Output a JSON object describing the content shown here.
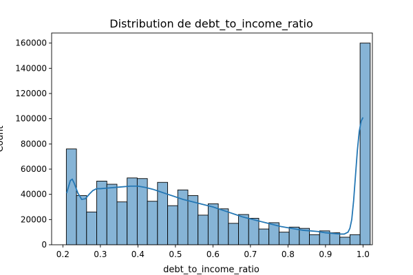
{
  "chart_data": {
    "type": "bar",
    "title": "Distribution de debt_to_income_ratio",
    "xlabel": "debt_to_income_ratio",
    "ylabel": "Count",
    "xlim": [
      0.17,
      1.025
    ],
    "ylim": [
      0,
      168000
    ],
    "x_ticks": [
      0.2,
      0.3,
      0.4,
      0.5,
      0.6,
      0.7,
      0.8,
      0.9,
      1.0
    ],
    "x_tick_labels": [
      "0.2",
      "0.3",
      "0.4",
      "0.5",
      "0.6",
      "0.7",
      "0.8",
      "0.9",
      "1.0"
    ],
    "y_ticks": [
      0,
      20000,
      40000,
      60000,
      80000,
      100000,
      120000,
      140000,
      160000
    ],
    "y_tick_labels": [
      "0",
      "20000",
      "40000",
      "60000",
      "80000",
      "100000",
      "120000",
      "140000",
      "160000"
    ],
    "bin_edges": [
      0.2092,
      0.2362,
      0.2632,
      0.2902,
      0.3172,
      0.3442,
      0.3712,
      0.3982,
      0.4252,
      0.4522,
      0.4792,
      0.5062,
      0.5332,
      0.5602,
      0.5872,
      0.6142,
      0.6412,
      0.6682,
      0.6952,
      0.7222,
      0.7492,
      0.7762,
      0.8032,
      0.8302,
      0.8572,
      0.8842,
      0.9112,
      0.9382,
      0.9652,
      0.9922,
      1.0192
    ],
    "values": [
      76000,
      39000,
      26000,
      50500,
      48000,
      34000,
      53000,
      52500,
      34500,
      49500,
      31000,
      43500,
      39000,
      23500,
      32500,
      28500,
      17000,
      24000,
      21000,
      12500,
      17500,
      10000,
      14000,
      13000,
      8000,
      11000,
      9500,
      6000,
      8000,
      160000
    ],
    "kde": {
      "x": [
        0.21,
        0.215,
        0.22,
        0.225,
        0.23,
        0.24,
        0.25,
        0.26,
        0.27,
        0.28,
        0.29,
        0.3,
        0.32,
        0.34,
        0.36,
        0.38,
        0.4,
        0.42,
        0.44,
        0.46,
        0.48,
        0.5,
        0.52,
        0.54,
        0.56,
        0.58,
        0.6,
        0.62,
        0.64,
        0.66,
        0.68,
        0.7,
        0.72,
        0.74,
        0.76,
        0.78,
        0.8,
        0.82,
        0.84,
        0.86,
        0.88,
        0.9,
        0.92,
        0.94,
        0.95,
        0.96,
        0.965,
        0.97,
        0.975,
        0.98,
        0.985,
        0.99,
        0.995,
        1.0
      ],
      "y": [
        41000,
        46000,
        51000,
        52000,
        49000,
        41000,
        36000,
        36500,
        40000,
        43000,
        44500,
        44500,
        45000,
        45500,
        46000,
        46500,
        46500,
        45500,
        44000,
        42000,
        40000,
        38000,
        36000,
        34500,
        33000,
        31500,
        30000,
        28000,
        26000,
        24000,
        22000,
        20500,
        19000,
        17500,
        16000,
        14500,
        13500,
        12500,
        11500,
        11000,
        10500,
        9500,
        9000,
        8500,
        8500,
        10000,
        13000,
        20000,
        35000,
        55000,
        75000,
        90000,
        98000,
        101000
      ]
    },
    "bar_color": "#86b4d6",
    "bar_edge_color": "#000000",
    "kde_color": "#2477b4"
  }
}
